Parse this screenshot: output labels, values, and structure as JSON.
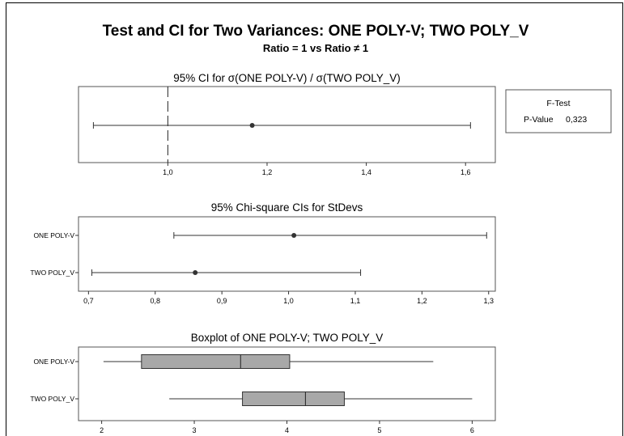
{
  "chart_data": {
    "title": "Test and CI for Two Variances: ONE POLY-V; TWO POLY_V",
    "subtitle": "Ratio = 1 vs Ratio ≠ 1",
    "test_box": {
      "heading": "F-Test",
      "label": "P-Value",
      "value": "0,323"
    },
    "panels": [
      {
        "type": "interval",
        "title": "95% CI for σ(ONE POLY-V) / σ(TWO POLY_V)",
        "xlim": [
          0.82,
          1.66
        ],
        "ticks": [
          1.0,
          1.2,
          1.4,
          1.6
        ],
        "tick_labels": [
          "1,0",
          "1,2",
          "1,4",
          "1,6"
        ],
        "reference_line": 1.0,
        "intervals": [
          {
            "category": "",
            "lower": 0.85,
            "estimate": 1.17,
            "upper": 1.61
          }
        ]
      },
      {
        "type": "interval",
        "title": "95% Chi-square CIs for StDevs",
        "xlim": [
          0.685,
          1.31
        ],
        "ticks": [
          0.7,
          0.8,
          0.9,
          1.0,
          1.1,
          1.2,
          1.3
        ],
        "tick_labels": [
          "0,7",
          "0,8",
          "0,9",
          "1,0",
          "1,1",
          "1,2",
          "1,3"
        ],
        "intervals": [
          {
            "category": "ONE POLY-V",
            "lower": 0.828,
            "estimate": 1.008,
            "upper": 1.297
          },
          {
            "category": "TWO POLY_V",
            "lower": 0.705,
            "estimate": 0.86,
            "upper": 1.108
          }
        ]
      },
      {
        "type": "boxplot",
        "title": "Boxplot of ONE POLY-V; TWO POLY_V",
        "xlim": [
          1.75,
          6.25
        ],
        "ticks": [
          2,
          3,
          4,
          5,
          6
        ],
        "tick_labels": [
          "2",
          "3",
          "4",
          "5",
          "6"
        ],
        "boxes": [
          {
            "category": "ONE POLY-V",
            "min": 2.02,
            "q1": 2.43,
            "median": 3.5,
            "q3": 4.03,
            "max": 5.58
          },
          {
            "category": "TWO POLY_V",
            "min": 2.73,
            "q1": 3.52,
            "median": 4.2,
            "q3": 4.62,
            "max": 6.0
          }
        ]
      }
    ]
  }
}
